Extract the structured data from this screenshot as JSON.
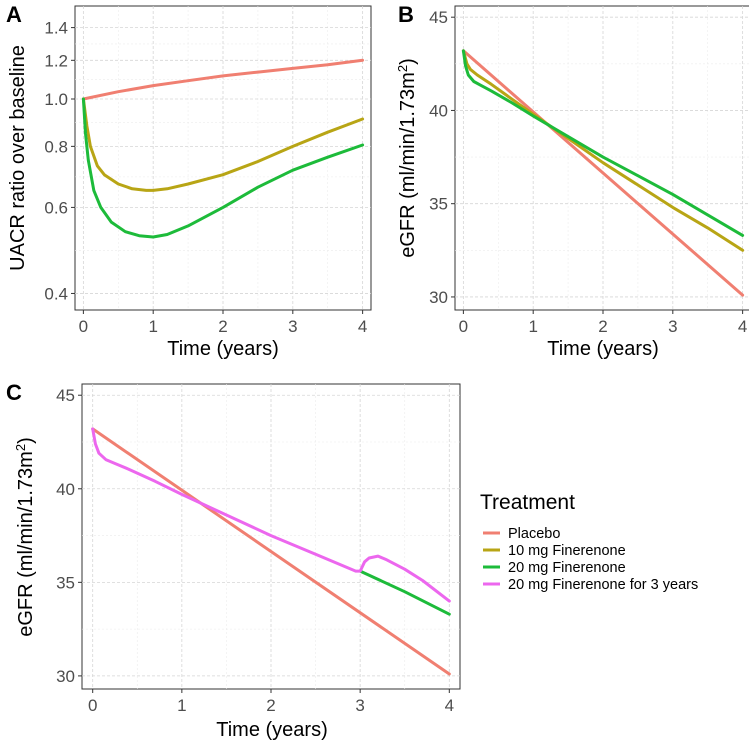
{
  "figure": {
    "legend": {
      "title": "Treatment",
      "entries": [
        {
          "label": "Placebo",
          "color": "#F07F71"
        },
        {
          "label": "10 mg Finerenone",
          "color": "#B8A515"
        },
        {
          "label": "20 mg Finerenone",
          "color": "#1DBB3A"
        },
        {
          "label": "20 mg Finerenone for 3 years",
          "color": "#EC67EE"
        }
      ]
    }
  },
  "chart_data": [
    {
      "panel": "A",
      "type": "line",
      "xlabel": "Time (years)",
      "ylabel": "UACR ratio over baseline",
      "y_scale": "log",
      "xlim": [
        -0.12,
        4.12
      ],
      "ylim": [
        0.37,
        1.55
      ],
      "xticks": [
        0,
        1,
        2,
        3,
        4
      ],
      "xtick_labels": [
        "0",
        "1",
        "2",
        "3",
        "4"
      ],
      "yticks": [
        0.4,
        0.6,
        0.8,
        1.0,
        1.2,
        1.4
      ],
      "ytick_labels": [
        "0.4",
        "0.6",
        "0.8",
        "1.0",
        "1.2",
        "1.4"
      ],
      "series": [
        {
          "name": "Placebo",
          "color": "#F07F71",
          "x": [
            0,
            0.5,
            1,
            1.5,
            2,
            2.5,
            3,
            3.5,
            4
          ],
          "y": [
            1.0,
            1.035,
            1.065,
            1.09,
            1.115,
            1.135,
            1.155,
            1.175,
            1.2
          ]
        },
        {
          "name": "10 mg Finerenone",
          "color": "#B8A515",
          "x": [
            0,
            0.05,
            0.1,
            0.2,
            0.3,
            0.5,
            0.7,
            0.9,
            1.0,
            1.2,
            1.5,
            2,
            2.5,
            3,
            3.5,
            4
          ],
          "y": [
            1.0,
            0.88,
            0.8,
            0.73,
            0.7,
            0.67,
            0.655,
            0.65,
            0.65,
            0.655,
            0.67,
            0.7,
            0.745,
            0.8,
            0.855,
            0.91
          ]
        },
        {
          "name": "20 mg Finerenone",
          "color": "#1DBB3A",
          "x": [
            0,
            0.03,
            0.07,
            0.15,
            0.25,
            0.4,
            0.6,
            0.8,
            1.0,
            1.2,
            1.5,
            2,
            2.5,
            3,
            3.5,
            4
          ],
          "y": [
            1.0,
            0.85,
            0.75,
            0.65,
            0.6,
            0.56,
            0.535,
            0.525,
            0.522,
            0.528,
            0.55,
            0.6,
            0.66,
            0.715,
            0.76,
            0.805
          ]
        }
      ]
    },
    {
      "panel": "B",
      "type": "line",
      "xlabel": "Time (years)",
      "ylabel": "eGFR (ml/min/1.73m2)",
      "xlim": [
        -0.12,
        4.12
      ],
      "ylim": [
        29.3,
        45.6
      ],
      "xticks": [
        0,
        1,
        2,
        3,
        4
      ],
      "xtick_labels": [
        "0",
        "1",
        "2",
        "3",
        "4"
      ],
      "yticks": [
        30,
        35,
        40,
        45
      ],
      "ytick_labels": [
        "30",
        "35",
        "40",
        "45"
      ],
      "series": [
        {
          "name": "Placebo",
          "color": "#F07F71",
          "x": [
            0,
            4
          ],
          "y": [
            43.2,
            30.1
          ]
        },
        {
          "name": "10 mg Finerenone",
          "color": "#B8A515",
          "x": [
            0,
            0.05,
            0.1,
            0.2,
            0.4,
            0.7,
            1.0,
            1.5,
            2,
            2.5,
            3,
            3.5,
            4
          ],
          "y": [
            43.2,
            42.5,
            42.2,
            41.9,
            41.4,
            40.6,
            39.8,
            38.5,
            37.2,
            36.0,
            34.8,
            33.7,
            32.5
          ]
        },
        {
          "name": "20 mg Finerenone",
          "color": "#1DBB3A",
          "x": [
            0,
            0.03,
            0.07,
            0.15,
            0.25,
            0.4,
            0.7,
            1.0,
            1.5,
            2,
            2.5,
            3,
            3.5,
            4
          ],
          "y": [
            43.2,
            42.4,
            41.9,
            41.55,
            41.35,
            41.05,
            40.4,
            39.7,
            38.6,
            37.5,
            36.5,
            35.5,
            34.4,
            33.3
          ]
        }
      ]
    },
    {
      "panel": "C",
      "type": "line",
      "xlabel": "Time (years)",
      "ylabel": "eGFR (ml/min/1.73m2)",
      "xlim": [
        -0.12,
        4.12
      ],
      "ylim": [
        29.3,
        45.6
      ],
      "xticks": [
        0,
        1,
        2,
        3,
        4
      ],
      "xtick_labels": [
        "0",
        "1",
        "2",
        "3",
        "4"
      ],
      "yticks": [
        30,
        35,
        40,
        45
      ],
      "ytick_labels": [
        "30",
        "35",
        "40",
        "45"
      ],
      "series": [
        {
          "name": "Placebo",
          "color": "#F07F71",
          "x": [
            0,
            4
          ],
          "y": [
            43.2,
            30.1
          ]
        },
        {
          "name": "20 mg Finerenone",
          "color": "#1DBB3A",
          "x": [
            3.0,
            3.5,
            4
          ],
          "y": [
            35.6,
            34.5,
            33.3
          ]
        },
        {
          "name": "20 mg Finerenone for 3 years",
          "color": "#EC67EE",
          "x": [
            0,
            0.03,
            0.07,
            0.15,
            0.25,
            0.4,
            0.7,
            1.0,
            1.5,
            2,
            2.5,
            2.95,
            3.0,
            3.05,
            3.1,
            3.2,
            3.3,
            3.5,
            3.7,
            4
          ],
          "y": [
            43.2,
            42.4,
            41.9,
            41.55,
            41.35,
            41.05,
            40.4,
            39.7,
            38.6,
            37.5,
            36.5,
            35.6,
            35.6,
            36.1,
            36.3,
            36.4,
            36.2,
            35.7,
            35.1,
            34.0
          ]
        }
      ]
    }
  ]
}
